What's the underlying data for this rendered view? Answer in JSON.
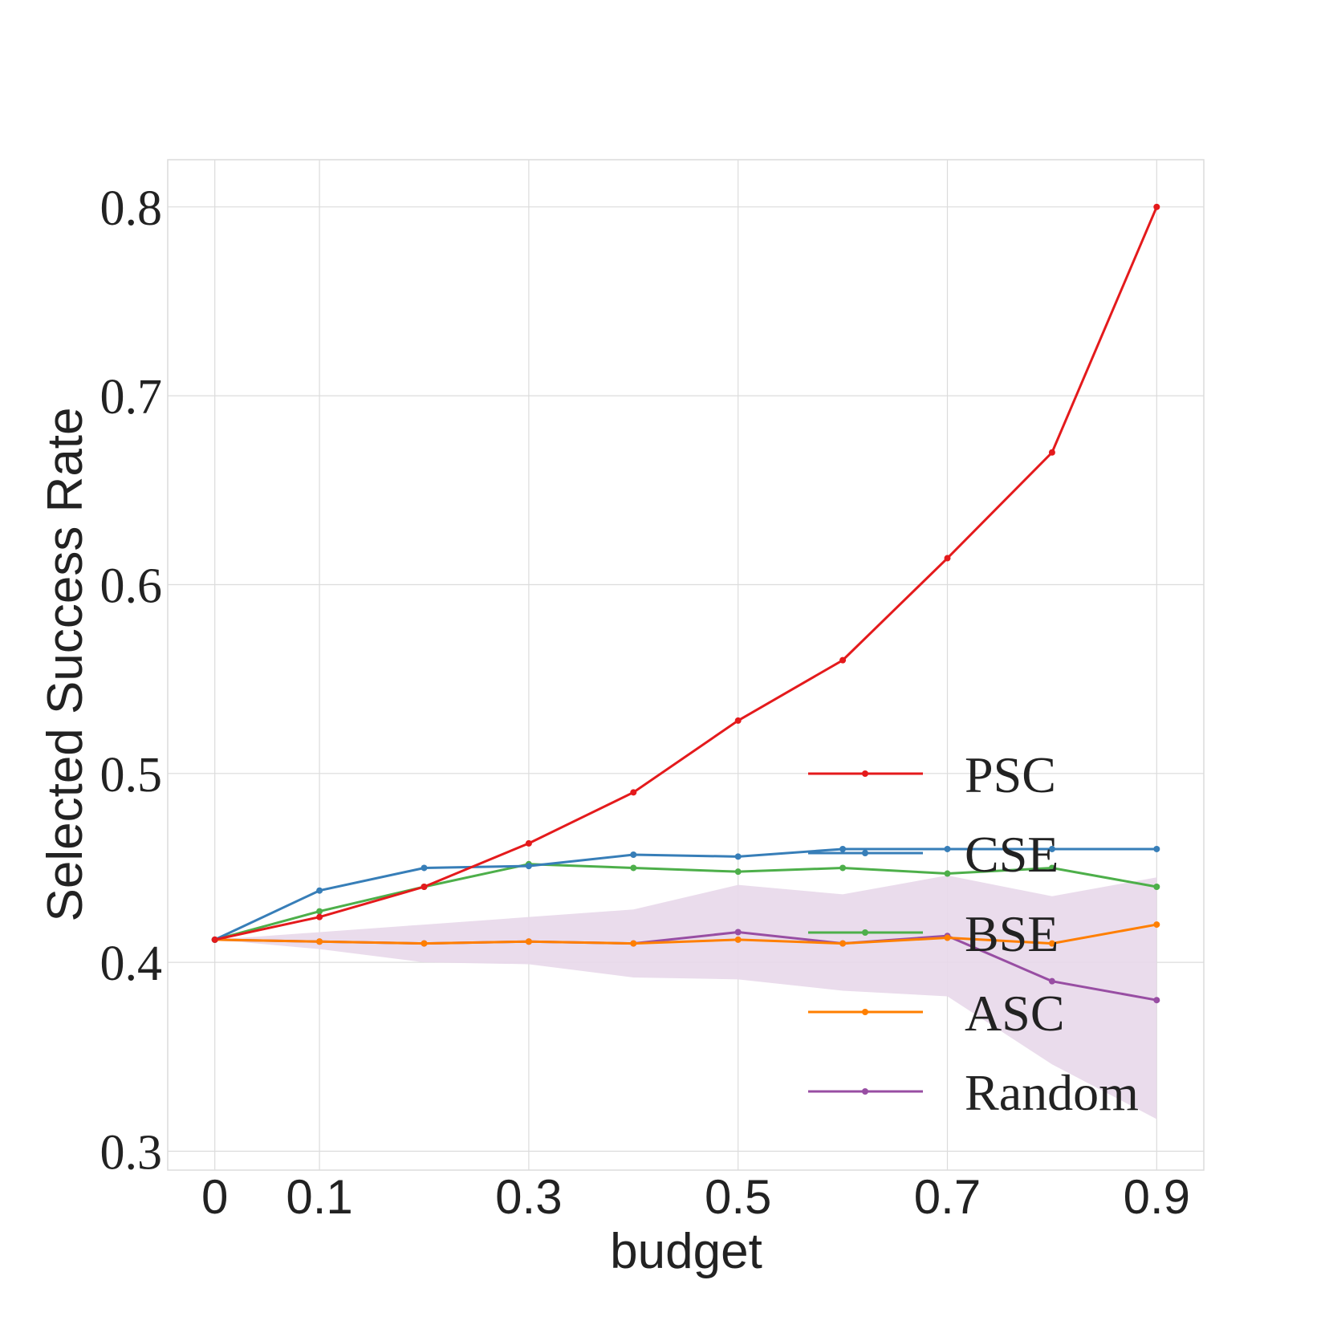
{
  "chart_data": {
    "type": "line",
    "title": "",
    "xlabel": "budget",
    "ylabel": "Selected Success Rate",
    "xlim": [
      -0.045,
      0.945
    ],
    "ylim": [
      0.29,
      0.825
    ],
    "grid": true,
    "x": [
      0,
      0.1,
      0.2,
      0.3,
      0.4,
      0.5,
      0.6,
      0.7,
      0.8,
      0.9
    ],
    "x_ticks": [
      0,
      0.1,
      0.3,
      0.5,
      0.7,
      0.9
    ],
    "x_tick_labels": [
      "0",
      "0.1",
      "0.3",
      "0.5",
      "0.7",
      "0.9"
    ],
    "y_ticks": [
      0.3,
      0.4,
      0.5,
      0.6,
      0.7,
      0.8
    ],
    "y_tick_labels": [
      "0.3",
      "0.4",
      "0.5",
      "0.6",
      "0.7",
      "0.8"
    ],
    "series": [
      {
        "name": "PSC",
        "color": "#e41a1c",
        "values": [
          0.412,
          0.424,
          0.44,
          0.463,
          0.49,
          0.528,
          0.56,
          0.614,
          0.67,
          0.8
        ]
      },
      {
        "name": "CSE",
        "color": "#377eb8",
        "values": [
          0.412,
          0.438,
          0.45,
          0.451,
          0.457,
          0.456,
          0.46,
          0.46,
          0.46,
          0.46
        ]
      },
      {
        "name": "BSE",
        "color": "#4daf4a",
        "values": [
          0.412,
          0.427,
          0.44,
          0.452,
          0.45,
          0.448,
          0.45,
          0.447,
          0.45,
          0.44
        ]
      },
      {
        "name": "ASC",
        "color": "#ff7f00",
        "values": [
          0.412,
          0.411,
          0.41,
          0.411,
          0.41,
          0.412,
          0.41,
          0.413,
          0.41,
          0.42
        ]
      },
      {
        "name": "Random",
        "color": "#984ea3",
        "values": [
          0.412,
          0.411,
          0.41,
          0.411,
          0.41,
          0.416,
          0.41,
          0.414,
          0.39,
          0.38
        ],
        "band_lower": [
          0.412,
          0.407,
          0.4,
          0.399,
          0.392,
          0.391,
          0.385,
          0.382,
          0.346,
          0.317
        ],
        "band_upper": [
          0.412,
          0.416,
          0.42,
          0.424,
          0.428,
          0.441,
          0.436,
          0.446,
          0.435,
          0.445
        ],
        "band_color": "#e8d8ea"
      }
    ],
    "legend": {
      "position": "bottom-right",
      "entries": [
        "PSC",
        "CSE",
        "BSE",
        "ASC",
        "Random"
      ]
    }
  }
}
